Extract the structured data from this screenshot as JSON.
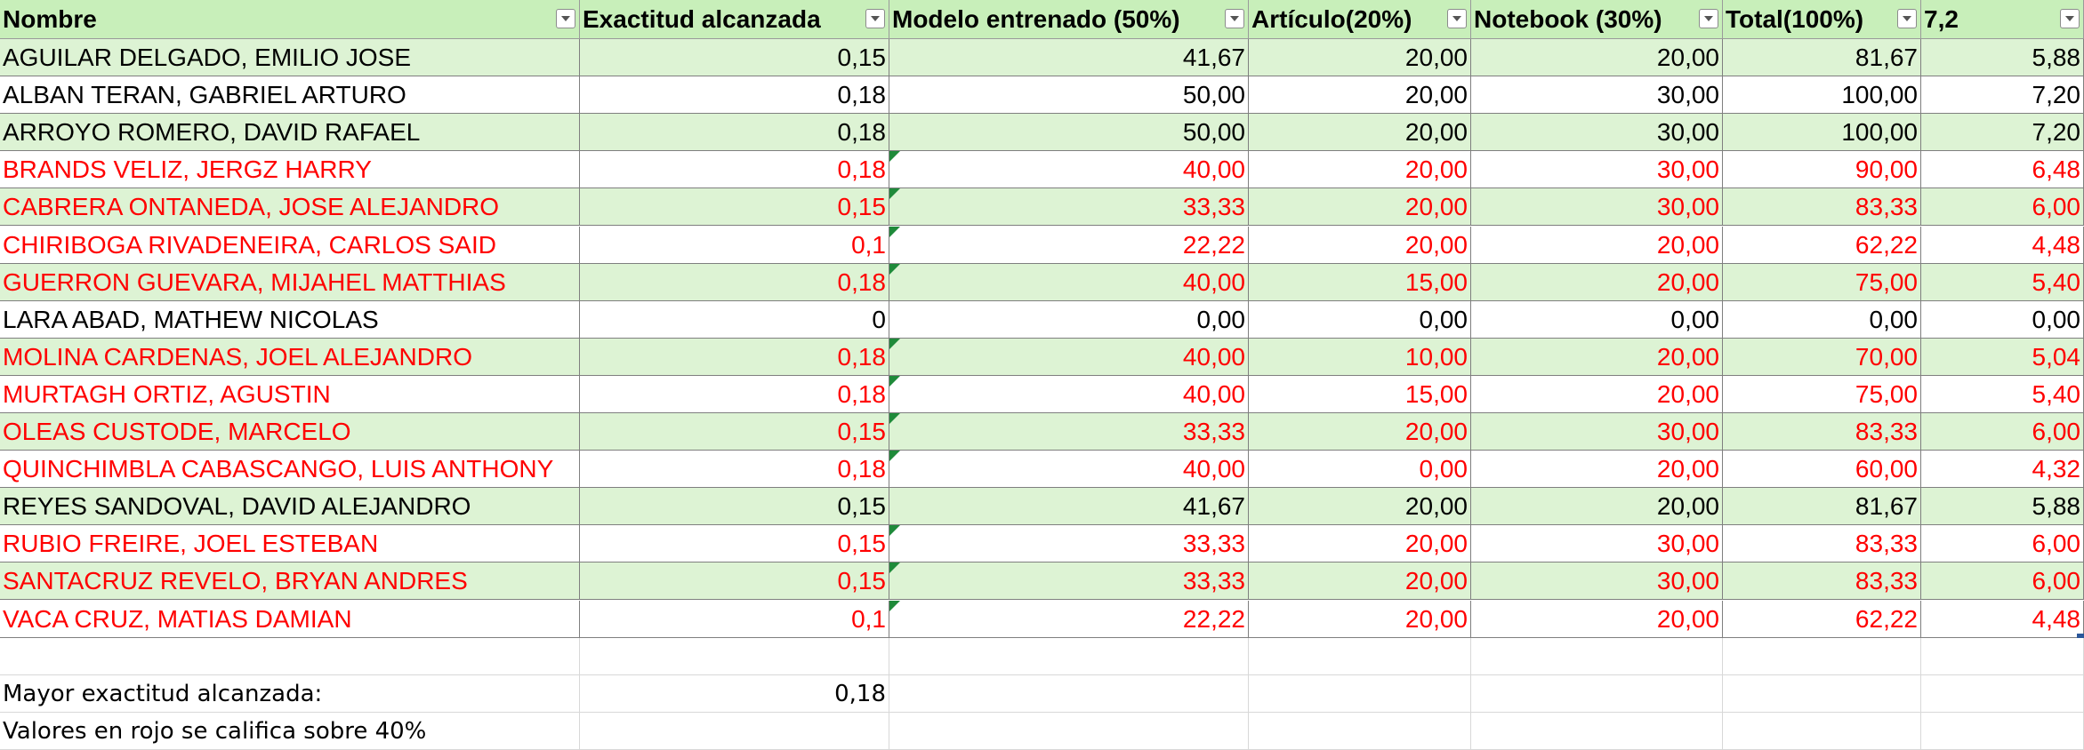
{
  "sheet": {
    "headers": [
      "Nombre",
      "Exactitud alcanzada",
      "Modelo entrenado (50%)",
      "Artículo(20%)",
      "Notebook (30%)",
      "Total(100%)",
      "7,2"
    ],
    "header_aligns": [
      "left",
      "left",
      "left",
      "left",
      "left",
      "left",
      "left"
    ],
    "rows": [
      {
        "name": "AGUILAR DELGADO, EMILIO JOSE",
        "exactitud": "0,15",
        "modelo": "41,67",
        "articulo": "20,00",
        "notebook": "20,00",
        "total": "81,67",
        "nota": "5,88",
        "red": false
      },
      {
        "name": "ALBAN TERAN, GABRIEL ARTURO",
        "exactitud": "0,18",
        "modelo": "50,00",
        "articulo": "20,00",
        "notebook": "30,00",
        "total": "100,00",
        "nota": "7,20",
        "red": false
      },
      {
        "name": "ARROYO ROMERO, DAVID RAFAEL",
        "exactitud": "0,18",
        "modelo": "50,00",
        "articulo": "20,00",
        "notebook": "30,00",
        "total": "100,00",
        "nota": "7,20",
        "red": false
      },
      {
        "name": "BRANDS VELIZ, JERGZ HARRY",
        "exactitud": "0,18",
        "modelo": "40,00",
        "articulo": "20,00",
        "notebook": "30,00",
        "total": "90,00",
        "nota": "6,48",
        "red": true
      },
      {
        "name": "CABRERA ONTANEDA, JOSE ALEJANDRO",
        "exactitud": "0,15",
        "modelo": "33,33",
        "articulo": "20,00",
        "notebook": "30,00",
        "total": "83,33",
        "nota": "6,00",
        "red": true
      },
      {
        "name": "CHIRIBOGA RIVADENEIRA, CARLOS SAID",
        "exactitud": "0,1",
        "modelo": "22,22",
        "articulo": "20,00",
        "notebook": "20,00",
        "total": "62,22",
        "nota": "4,48",
        "red": true
      },
      {
        "name": "GUERRON GUEVARA, MIJAHEL MATTHIAS",
        "exactitud": "0,18",
        "modelo": "40,00",
        "articulo": "15,00",
        "notebook": "20,00",
        "total": "75,00",
        "nota": "5,40",
        "red": true
      },
      {
        "name": "LARA ABAD, MATHEW NICOLAS",
        "exactitud": "0",
        "modelo": "0,00",
        "articulo": "0,00",
        "notebook": "0,00",
        "total": "0,00",
        "nota": "0,00",
        "red": false
      },
      {
        "name": "MOLINA CARDENAS, JOEL ALEJANDRO",
        "exactitud": "0,18",
        "modelo": "40,00",
        "articulo": "10,00",
        "notebook": "20,00",
        "total": "70,00",
        "nota": "5,04",
        "red": true
      },
      {
        "name": "MURTAGH ORTIZ, AGUSTIN",
        "exactitud": "0,18",
        "modelo": "40,00",
        "articulo": "15,00",
        "notebook": "20,00",
        "total": "75,00",
        "nota": "5,40",
        "red": true
      },
      {
        "name": "OLEAS CUSTODE, MARCELO",
        "exactitud": "0,15",
        "modelo": "33,33",
        "articulo": "20,00",
        "notebook": "30,00",
        "total": "83,33",
        "nota": "6,00",
        "red": true
      },
      {
        "name": "QUINCHIMBLA CABASCANGO, LUIS ANTHONY",
        "exactitud": "0,18",
        "modelo": "40,00",
        "articulo": "0,00",
        "notebook": "20,00",
        "total": "60,00",
        "nota": "4,32",
        "red": true
      },
      {
        "name": "REYES SANDOVAL, DAVID ALEJANDRO",
        "exactitud": "0,15",
        "modelo": "41,67",
        "articulo": "20,00",
        "notebook": "20,00",
        "total": "81,67",
        "nota": "5,88",
        "red": false
      },
      {
        "name": "RUBIO FREIRE, JOEL ESTEBAN",
        "exactitud": "0,15",
        "modelo": "33,33",
        "articulo": "20,00",
        "notebook": "30,00",
        "total": "83,33",
        "nota": "6,00",
        "red": true
      },
      {
        "name": "SANTACRUZ REVELO, BRYAN ANDRES",
        "exactitud": "0,15",
        "modelo": "33,33",
        "articulo": "20,00",
        "notebook": "30,00",
        "total": "83,33",
        "nota": "6,00",
        "red": true
      },
      {
        "name": "VACA CRUZ, MATIAS DAMIAN",
        "exactitud": "0,1",
        "modelo": "22,22",
        "articulo": "20,00",
        "notebook": "20,00",
        "total": "62,22",
        "nota": "4,48",
        "red": true
      }
    ],
    "footer": {
      "mayor_label": "Mayor exactitud alcanzada:",
      "mayor_value": "0,18",
      "note": "Valores en rojo se califica sobre 40%"
    },
    "colors": {
      "header_fill": "#c8efba",
      "band_fill": "#ddf3d4",
      "red_text": "#ff0000",
      "comment_indicator": "#1f8a3a"
    },
    "icons": {
      "filter": "filter-dropdown-icon",
      "comment": "comment-indicator-icon"
    }
  }
}
